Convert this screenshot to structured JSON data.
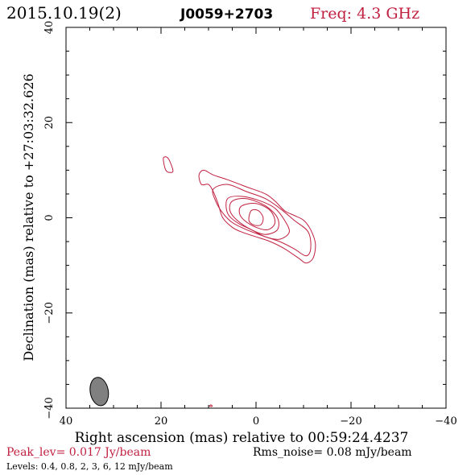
{
  "header": {
    "date": "2015.10.19(2)",
    "source": "J0059+2703",
    "freq": "Freq: 4.3 GHz"
  },
  "footer": {
    "peak": "Peak_lev=  0.017 Jy/beam",
    "rms": "Rms_noise= 0.08 mJy/beam",
    "levels": "Levels: 0.4, 0.8,    2,    3,    6,   12 mJy/beam"
  },
  "colors": {
    "contour": "#c02040",
    "accent": "#c02040",
    "beam": "#808080"
  },
  "chart_data": {
    "type": "contour",
    "xlabel": "Right ascension (mas) relative to 00:59:24.4237",
    "ylabel": "Declination (mas) relative to +27:03:32.626",
    "xlim": [
      40,
      -40
    ],
    "ylim": [
      -40,
      40
    ],
    "xticks": [
      40,
      20,
      0,
      -20,
      -40
    ],
    "yticks": [
      40,
      20,
      0,
      -20,
      -40
    ],
    "beam": {
      "x": 33,
      "y": -36.5,
      "major": 6,
      "minor": 3.8,
      "pa_deg": -10
    },
    "contours": [
      {
        "level": 0.4,
        "points": [
          [
            12,
            9
          ],
          [
            11,
            10
          ],
          [
            9,
            9
          ],
          [
            6,
            8
          ],
          [
            2,
            6.5
          ],
          [
            -2,
            5
          ],
          [
            -4,
            3.5
          ],
          [
            -6,
            1.5
          ],
          [
            -8,
            0.5
          ],
          [
            -10,
            -0.5
          ],
          [
            -11.5,
            -2.5
          ],
          [
            -12.5,
            -5.5
          ],
          [
            -12,
            -8.5
          ],
          [
            -10.5,
            -9.5
          ],
          [
            -9,
            -8.5
          ],
          [
            -6,
            -6.5
          ],
          [
            -3,
            -5
          ],
          [
            0,
            -4
          ],
          [
            3,
            -3
          ],
          [
            5,
            -2
          ],
          [
            7,
            0
          ],
          [
            8,
            3
          ],
          [
            9,
            5.5
          ],
          [
            10,
            7
          ],
          [
            11.5,
            7
          ]
        ]
      },
      {
        "level": 0.8,
        "points": [
          [
            9,
            6
          ],
          [
            6,
            7
          ],
          [
            2,
            5.5
          ],
          [
            -2,
            4
          ],
          [
            -5,
            2
          ],
          [
            -8,
            -0.5
          ],
          [
            -11,
            -3
          ],
          [
            -11.5,
            -6.5
          ],
          [
            -10.5,
            -8
          ],
          [
            -8,
            -6.5
          ],
          [
            -5,
            -5
          ],
          [
            -2,
            -4
          ],
          [
            2,
            -2.5
          ],
          [
            5,
            -1
          ],
          [
            7,
            1
          ],
          [
            8.5,
            3.5
          ]
        ]
      },
      {
        "level": 2,
        "points": [
          [
            6,
            4
          ],
          [
            3,
            4.5
          ],
          [
            -1,
            3.5
          ],
          [
            -4,
            2
          ],
          [
            -6,
            -0.5
          ],
          [
            -7,
            -3
          ],
          [
            -5,
            -4.5
          ],
          [
            -2,
            -4
          ],
          [
            1,
            -2.5
          ],
          [
            4,
            -1
          ],
          [
            6,
            1
          ]
        ]
      },
      {
        "level": 3,
        "points": [
          [
            5,
            3.5
          ],
          [
            2,
            4
          ],
          [
            -2,
            2.5
          ],
          [
            -4.5,
            0
          ],
          [
            -4.5,
            -2.5
          ],
          [
            -2,
            -3.5
          ],
          [
            1,
            -2.5
          ],
          [
            4,
            -0.5
          ],
          [
            5.5,
            1.5
          ]
        ]
      },
      {
        "level": 6,
        "points": [
          [
            3,
            2.5
          ],
          [
            0,
            3
          ],
          [
            -3,
            1.5
          ],
          [
            -4,
            -1
          ],
          [
            -2.5,
            -2.5
          ],
          [
            0,
            -2
          ],
          [
            2.5,
            -0.5
          ],
          [
            3.5,
            1
          ]
        ]
      },
      {
        "level": 12,
        "points": [
          [
            1,
            1.5
          ],
          [
            -0.5,
            1.5
          ],
          [
            -1.5,
            0
          ],
          [
            -1,
            -1.5
          ],
          [
            0.5,
            -1.5
          ],
          [
            1.5,
            -0.5
          ]
        ]
      },
      {
        "level": 0.4,
        "points": [
          [
            19.5,
            12.5
          ],
          [
            18.5,
            12.5
          ],
          [
            17.5,
            10
          ],
          [
            18,
            9.5
          ],
          [
            19,
            10
          ]
        ]
      },
      {
        "level": 0.4,
        "points": [
          [
            9.5,
            -39.3
          ],
          [
            9.2,
            -39.6
          ],
          [
            9.8,
            -39.6
          ]
        ]
      }
    ]
  }
}
